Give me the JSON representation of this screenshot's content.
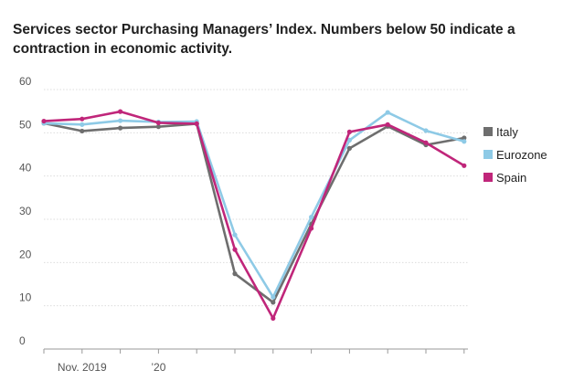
{
  "chart_data": {
    "type": "line",
    "title": "Services sector Purchasing Managers’ Index. Numbers below 50 indicate a contraction in economic activity.",
    "xlabel": "",
    "ylabel": "",
    "ylim": [
      0,
      60
    ],
    "yticks": [
      0,
      10,
      20,
      30,
      40,
      50,
      60
    ],
    "x_tick_labels": [
      {
        "index": 1,
        "label": "Nov. 2019"
      },
      {
        "index": 3,
        "label": "’20"
      }
    ],
    "n_points": 12,
    "grid": true,
    "legend_position": "right",
    "series": [
      {
        "name": "Italy",
        "color": "#6e6e6e",
        "values": [
          52.2,
          50.4,
          51.1,
          51.4,
          52.1,
          17.4,
          10.8,
          28.9,
          46.4,
          51.5,
          47.2,
          48.8
        ]
      },
      {
        "name": "Eurozone",
        "color": "#8ecae6",
        "values": [
          52.2,
          51.9,
          52.8,
          52.5,
          52.6,
          26.4,
          12.0,
          30.5,
          48.3,
          54.7,
          50.5,
          48.0
        ]
      },
      {
        "name": "Spain",
        "color": "#c0267a",
        "values": [
          52.7,
          53.2,
          54.9,
          52.3,
          52.1,
          23.0,
          7.1,
          27.9,
          50.2,
          51.9,
          47.7,
          42.4
        ]
      }
    ]
  }
}
